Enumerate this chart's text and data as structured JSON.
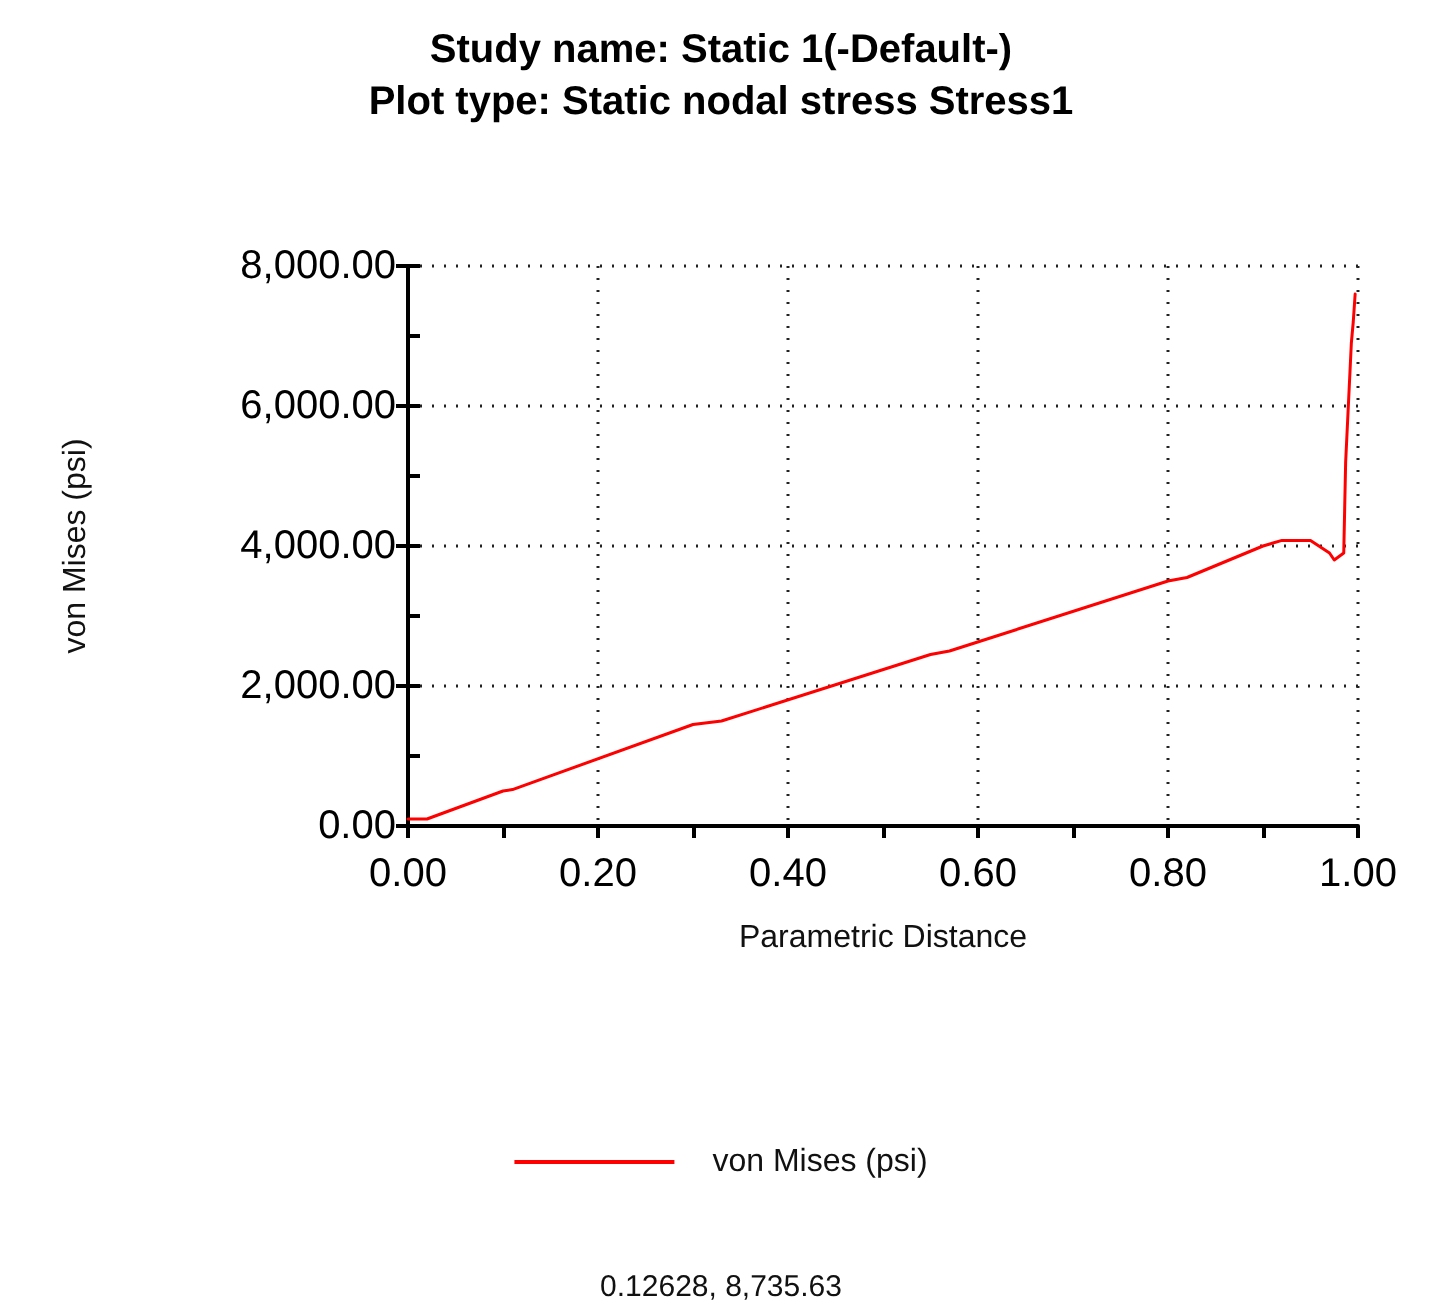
{
  "chart_data": {
    "type": "line",
    "title": "Study name: Static 1(-Default-)",
    "subtitle": "Plot type: Static nodal stress Stress1",
    "xlabel": "Parametric Distance",
    "ylabel": "von Mises (psi)",
    "x": [
      0,
      0.02,
      0.1,
      0.11,
      0.3,
      0.33,
      0.55,
      0.57,
      0.8,
      0.82,
      0.9,
      0.92,
      0.95,
      0.97,
      0.975,
      0.985,
      0.987,
      0.993,
      0.995,
      0.997
    ],
    "series": [
      {
        "name": "von Mises (psi)",
        "color": "#ff0000",
        "values": [
          100,
          100,
          500,
          520,
          1450,
          1500,
          2450,
          2500,
          3500,
          3550,
          4000,
          4080,
          4080,
          3900,
          3800,
          3900,
          5200,
          6900,
          7200,
          7600
        ]
      }
    ],
    "xlim": [
      0,
      1
    ],
    "xticks": [
      {
        "value": 0,
        "label": "0.00"
      },
      {
        "value": 0.1,
        "label": null
      },
      {
        "value": 0.2,
        "label": "0.20"
      },
      {
        "value": 0.3,
        "label": null
      },
      {
        "value": 0.4,
        "label": "0.40"
      },
      {
        "value": 0.5,
        "label": null
      },
      {
        "value": 0.6,
        "label": "0.60"
      },
      {
        "value": 0.7,
        "label": null
      },
      {
        "value": 0.8,
        "label": "0.80"
      },
      {
        "value": 0.9,
        "label": null
      },
      {
        "value": 1,
        "label": "1.00"
      }
    ],
    "ylim": [
      0,
      8000
    ],
    "yticks": [
      {
        "value": 0,
        "label": "0.00"
      },
      {
        "value": 1000,
        "label": null
      },
      {
        "value": 2000,
        "label": "2,000.00"
      },
      {
        "value": 3000,
        "label": null
      },
      {
        "value": 4000,
        "label": "4,000.00"
      },
      {
        "value": 5000,
        "label": null
      },
      {
        "value": 6000,
        "label": "6,000.00"
      },
      {
        "value": 7000,
        "label": null
      },
      {
        "value": 8000,
        "label": "8,000.00"
      }
    ],
    "grid": true,
    "legend": "bottom",
    "marker": "none",
    "line_style": "solid",
    "annotations": [
      "0.12628, 8,735.63"
    ]
  }
}
